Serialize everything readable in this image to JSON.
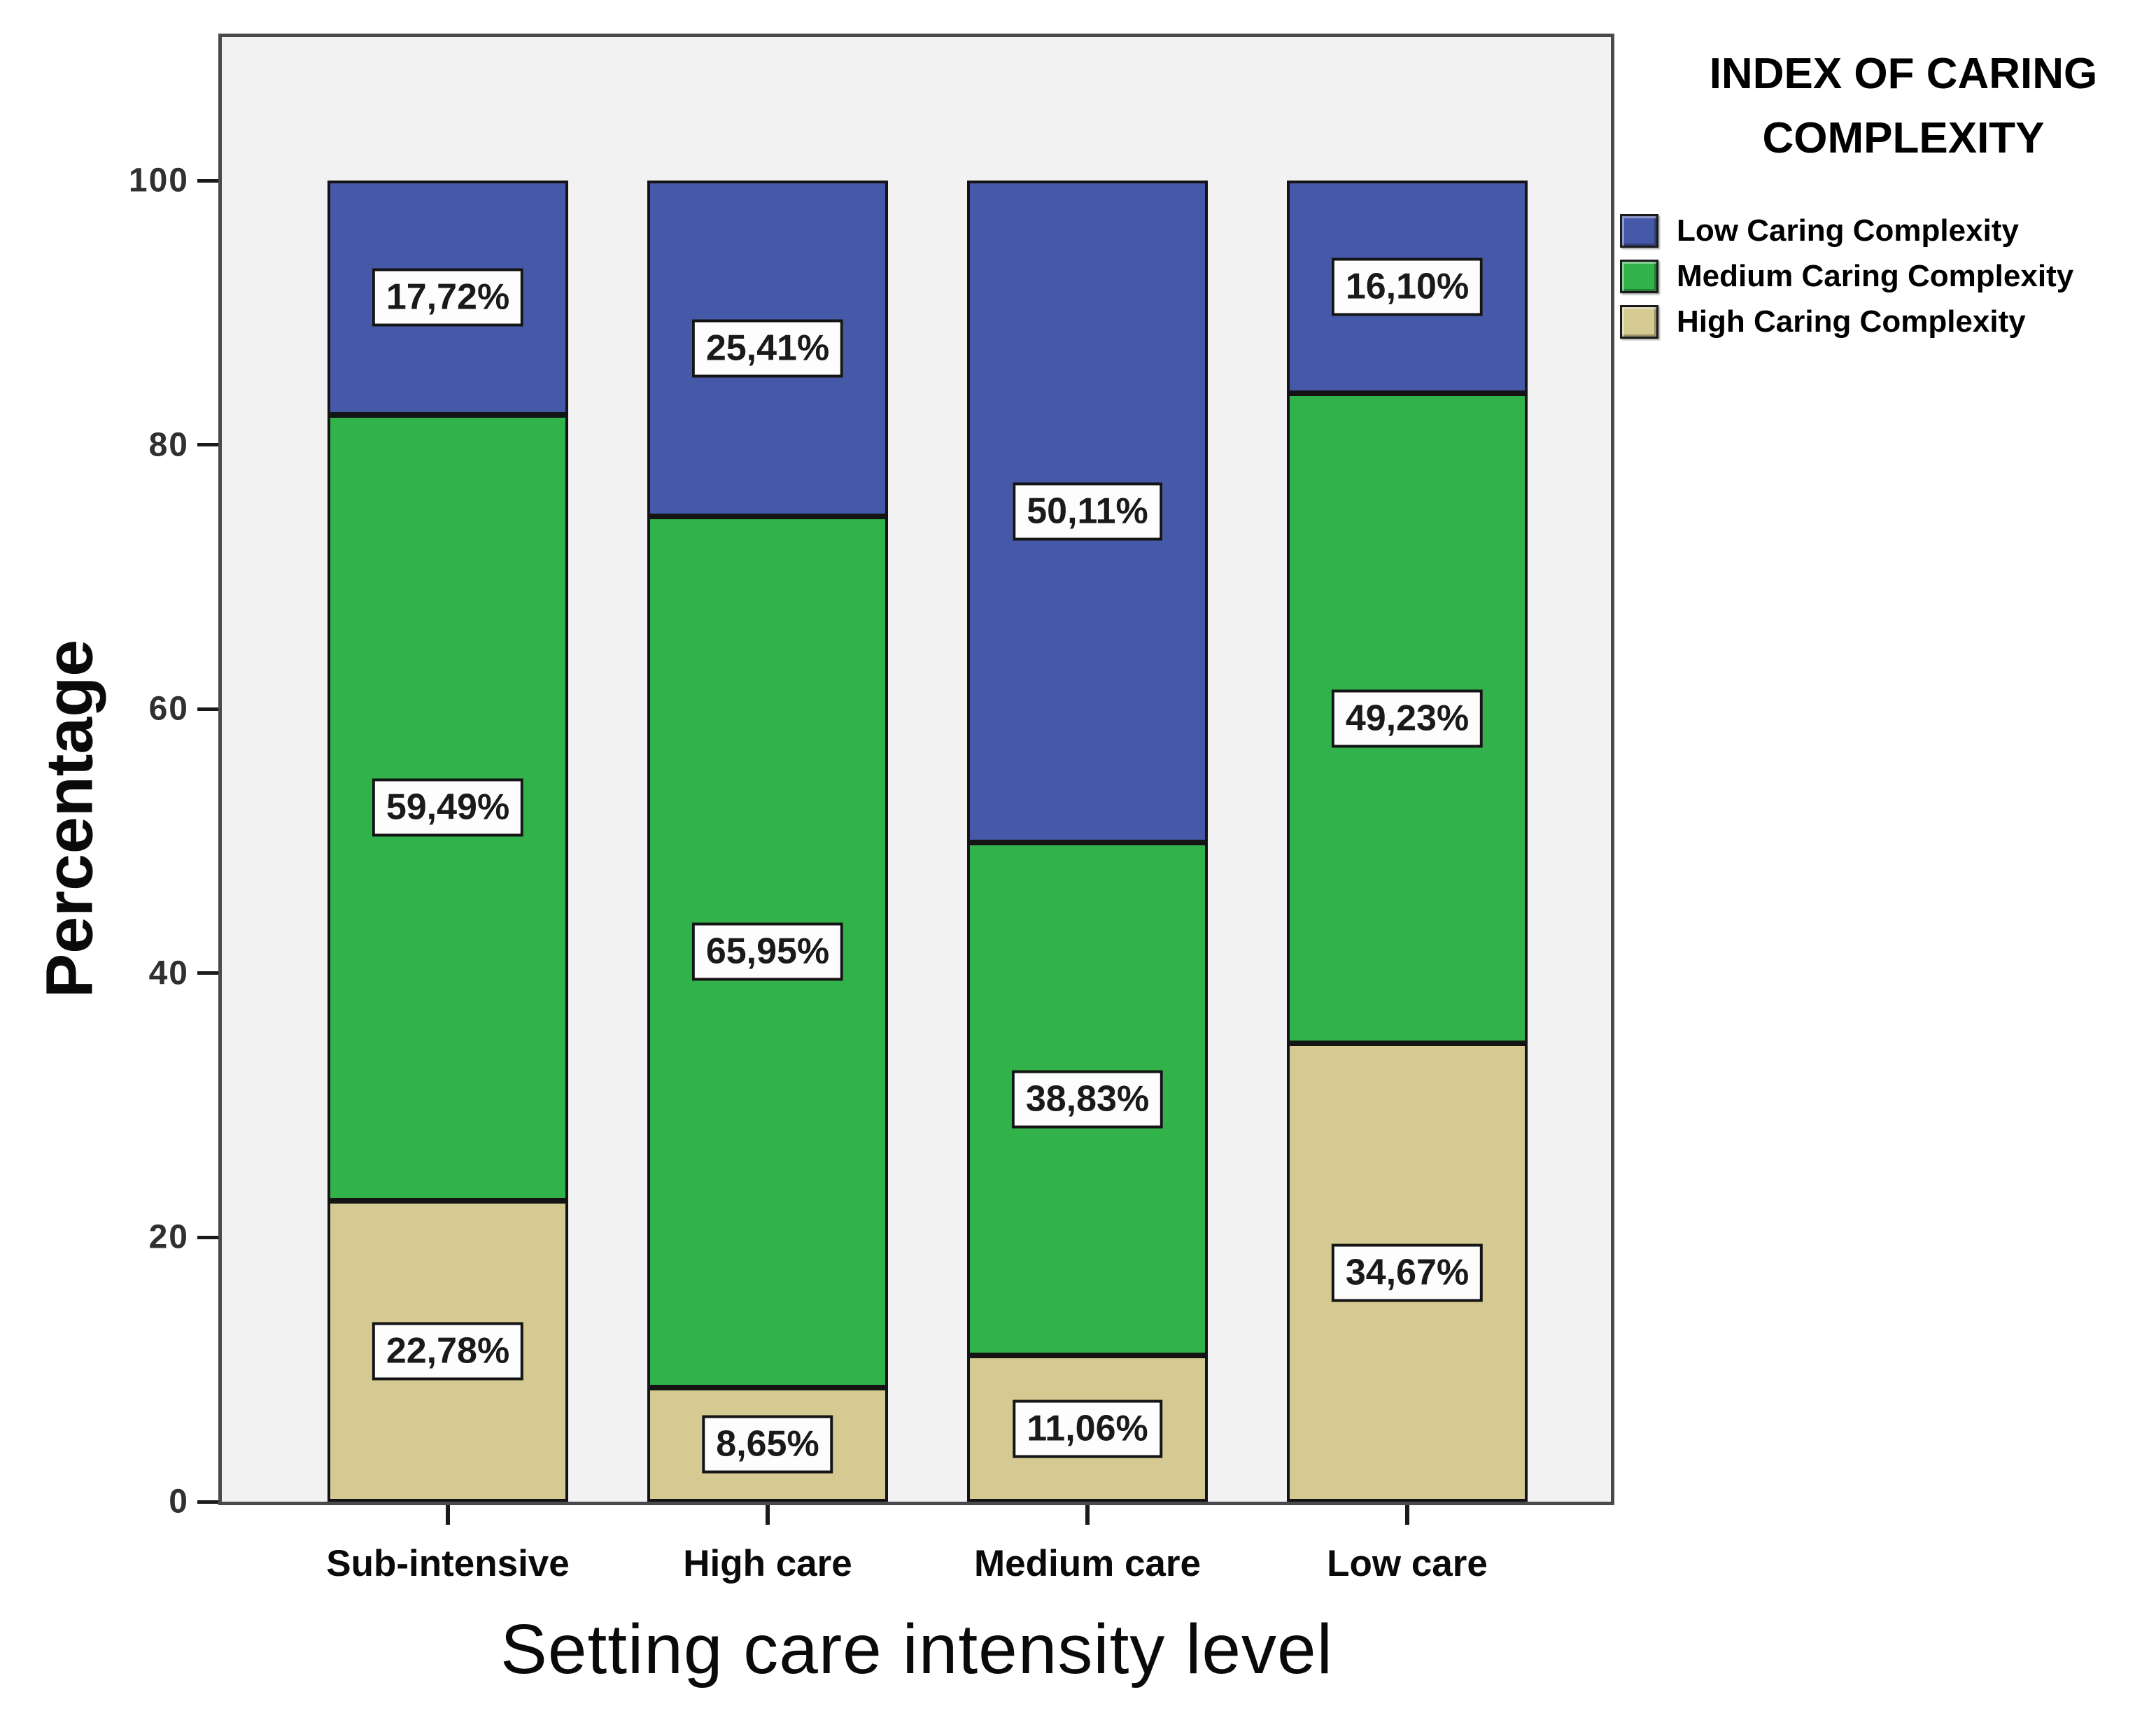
{
  "chart_data": {
    "type": "bar",
    "stacked": true,
    "orientation": "vertical",
    "xlabel": "Setting care intensity level",
    "ylabel": "Percentage",
    "ylim": [
      0,
      100
    ],
    "yticks": [
      0,
      20,
      40,
      60,
      80,
      100
    ],
    "grid": false,
    "categories": [
      "Sub-intensive",
      "High care",
      "Medium care",
      "Low care"
    ],
    "series": [
      {
        "name": "High Caring Complexity",
        "color": "#d5ca92",
        "values": [
          22.78,
          8.65,
          11.06,
          34.67
        ],
        "labels": [
          "22,78%",
          "8,65%",
          "11,06%",
          "34,67%"
        ]
      },
      {
        "name": "Medium Caring Complexity",
        "color": "#31b24a",
        "values": [
          59.49,
          65.95,
          38.83,
          49.23
        ],
        "labels": [
          "59,49%",
          "65,95%",
          "38,83%",
          "49,23%"
        ]
      },
      {
        "name": "Low Caring Complexity",
        "color": "#4659a8",
        "values": [
          17.72,
          25.41,
          50.11,
          16.1
        ],
        "labels": [
          "17,72%",
          "25,41%",
          "50,11%",
          "16,10%"
        ]
      }
    ],
    "legend": {
      "position": "right",
      "title_line1": "INDEX OF CARING",
      "title_line2": "COMPLEXITY",
      "items": [
        {
          "label": "Low Caring Complexity",
          "color": "#4659a8"
        },
        {
          "label": "Medium Caring Complexity",
          "color": "#31b24a"
        },
        {
          "label": "High Caring Complexity",
          "color": "#d5ca92"
        }
      ]
    },
    "colors": {
      "plot_background": "#f2f2f2",
      "page_background": "#ffffff",
      "axis_frame": "#4a4a4a",
      "bar_border": "#141414",
      "label_box_background": "#fdfdfd"
    }
  }
}
